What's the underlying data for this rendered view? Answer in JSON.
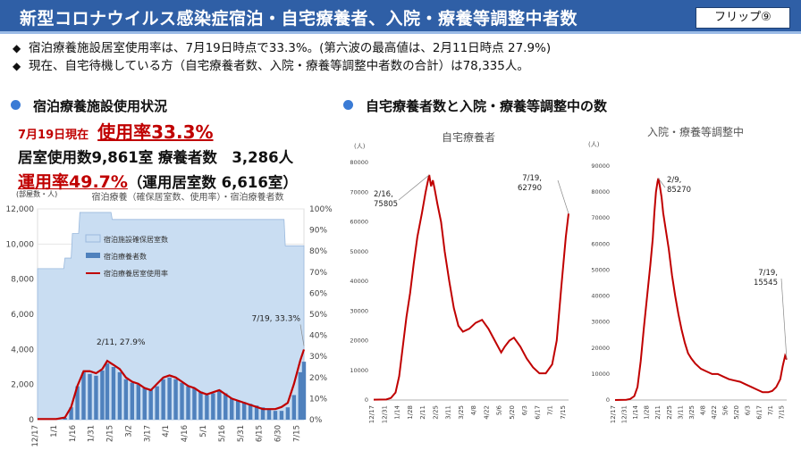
{
  "header": {
    "title": "新型コロナウイルス感染症宿泊・自宅療養者、入院・療養等調整中者数",
    "badge": "フリップ⑨"
  },
  "bullets": [
    {
      "mark": "◆",
      "text": "宿泊療養施設居室使用率は、7月19日時点で33.3%。(第六波の最高値は、2月11日時点 27.9%)"
    },
    {
      "mark": "◆",
      "text": "現在、自宅待機している方（自宅療養者数、入院・療養等調整中者数の合計）は78,335人。"
    }
  ],
  "left_section": {
    "heading": "宿泊療養施設使用状況",
    "date_label": "7月19日現在",
    "usage_rate": "使用率33.3%",
    "line2": "居室使用数9,861室 療養者数　3,286人",
    "operating_rate": "運用率49.7%",
    "operating_rooms": "（運用居室数 6,616室）"
  },
  "right_section": {
    "heading": "自宅療養者数と入院・療養等調整中の数"
  },
  "colors": {
    "header_bg": "#2f5fa6",
    "accent_red": "#c00000",
    "area_fill": "#c9ddf2",
    "bar_blue": "#4f81bd",
    "dot_blue": "#3a7bd5"
  },
  "chart_data": [
    {
      "type": "bar",
      "title": "宿泊療養（確保居室数、使用率）・宿泊療養者数",
      "ylabel_left": "(部屋数・人)",
      "ylim_left": [
        0,
        12000
      ],
      "yticks_left": [
        "0",
        "2,000",
        "4,000",
        "6,000",
        "8,000",
        "10,000",
        "12,000"
      ],
      "ylim_right": [
        0,
        100
      ],
      "yticks_right": [
        "0%",
        "10%",
        "20%",
        "30%",
        "40%",
        "50%",
        "60%",
        "70%",
        "80%",
        "90%",
        "100%"
      ],
      "x_ticks": [
        "12/17",
        "1/1",
        "1/16",
        "1/31",
        "2/15",
        "3/2",
        "3/17",
        "4/1",
        "4/16",
        "5/1",
        "5/16",
        "5/31",
        "6/15",
        "6/30",
        "7/15"
      ],
      "legend": [
        "宿泊施設確保居室数",
        "宿泊療養者数",
        "宿泊療養居室使用率"
      ],
      "series": [
        {
          "name": "宿泊施設確保居室数",
          "kind": "area",
          "x": [
            "12/17",
            "12/31",
            "1/1",
            "1/7",
            "1/8",
            "1/13",
            "1/14",
            "1/19",
            "1/20",
            "2/14",
            "2/15",
            "7/3",
            "7/4",
            "7/19"
          ],
          "values": [
            8600,
            8600,
            8600,
            8600,
            9200,
            9200,
            10600,
            10600,
            11800,
            11800,
            11400,
            11400,
            9900,
            9900
          ]
        },
        {
          "name": "宿泊療養者数",
          "kind": "bar",
          "x": [
            "1/8",
            "1/13",
            "1/18",
            "1/23",
            "1/28",
            "2/2",
            "2/7",
            "2/11",
            "2/16",
            "2/21",
            "2/26",
            "3/3",
            "3/8",
            "3/13",
            "3/18",
            "3/23",
            "3/28",
            "4/2",
            "4/7",
            "4/12",
            "4/17",
            "4/22",
            "4/27",
            "5/2",
            "5/7",
            "5/12",
            "5/17",
            "5/22",
            "5/27",
            "6/1",
            "6/6",
            "6/11",
            "6/16",
            "6/21",
            "6/26",
            "7/1",
            "7/6",
            "7/11",
            "7/16",
            "7/19"
          ],
          "values": [
            100,
            700,
            1900,
            2700,
            2600,
            2500,
            2800,
            3200,
            3000,
            2700,
            2300,
            2100,
            2000,
            1800,
            1700,
            1900,
            2300,
            2400,
            2300,
            2100,
            1900,
            1800,
            1600,
            1400,
            1500,
            1700,
            1500,
            1200,
            1100,
            1000,
            900,
            800,
            700,
            600,
            500,
            500,
            700,
            1400,
            2700,
            3300
          ]
        },
        {
          "name": "宿泊療養居室使用率",
          "kind": "line",
          "x": [
            "12/17",
            "1/1",
            "1/8",
            "1/13",
            "1/18",
            "1/23",
            "1/28",
            "2/2",
            "2/7",
            "2/11",
            "2/16",
            "2/21",
            "2/26",
            "3/3",
            "3/8",
            "3/13",
            "3/18",
            "3/23",
            "3/28",
            "4/2",
            "4/7",
            "4/12",
            "4/17",
            "4/22",
            "4/27",
            "5/2",
            "5/7",
            "5/12",
            "5/17",
            "5/22",
            "5/27",
            "6/1",
            "6/6",
            "6/11",
            "6/16",
            "6/21",
            "6/26",
            "7/1",
            "7/6",
            "7/11",
            "7/16",
            "7/19"
          ],
          "values": [
            0.3,
            0.3,
            1,
            6,
            16,
            23,
            23,
            22,
            24,
            27.9,
            26,
            24,
            20,
            18,
            17,
            15,
            14,
            17,
            20,
            21,
            20,
            18,
            16,
            15,
            13,
            12,
            13,
            14,
            12,
            10,
            9,
            8,
            7,
            6,
            5,
            5,
            5,
            6,
            8,
            17,
            28,
            33.3
          ]
        }
      ],
      "annotations": [
        {
          "x": "2/11",
          "text": "2/11, 27.9%"
        },
        {
          "x": "7/19",
          "text": "7/19, 33.3%"
        }
      ]
    },
    {
      "type": "line",
      "title": "自宅療養者",
      "ylabel": "(人)",
      "ylim": [
        0,
        80000
      ],
      "yticks": [
        "0",
        "10000",
        "20000",
        "30000",
        "40000",
        "50000",
        "60000",
        "70000",
        "80000"
      ],
      "x_ticks": [
        "12/17",
        "12/31",
        "1/14",
        "1/28",
        "2/11",
        "2/25",
        "3/11",
        "3/25",
        "4/8",
        "4/22",
        "5/6",
        "5/20",
        "6/3",
        "6/17",
        "7/1",
        "7/15"
      ],
      "series": [
        {
          "name": "自宅療養者",
          "x": [
            "12/17",
            "12/31",
            "1/5",
            "1/10",
            "1/14",
            "1/18",
            "1/22",
            "1/26",
            "1/30",
            "2/3",
            "2/8",
            "2/12",
            "2/14",
            "2/16",
            "2/18",
            "2/20",
            "2/22",
            "2/25",
            "3/1",
            "3/5",
            "3/10",
            "3/15",
            "3/20",
            "3/25",
            "4/1",
            "4/8",
            "4/15",
            "4/22",
            "4/29",
            "5/6",
            "5/10",
            "5/15",
            "5/20",
            "5/27",
            "6/3",
            "6/10",
            "6/17",
            "6/24",
            "7/1",
            "7/6",
            "7/11",
            "7/16",
            "7/19"
          ],
          "values": [
            100,
            200,
            700,
            2500,
            8000,
            18000,
            28000,
            36000,
            46000,
            55000,
            63000,
            70000,
            73000,
            75805,
            72000,
            74000,
            71000,
            66000,
            60000,
            50000,
            40000,
            31000,
            25000,
            23000,
            24000,
            26000,
            27000,
            24000,
            20000,
            16000,
            18000,
            20000,
            21000,
            18000,
            14000,
            11000,
            9000,
            9000,
            12000,
            20000,
            38000,
            55000,
            62790
          ]
        }
      ],
      "annotations": [
        {
          "x": "2/16",
          "text": "2/16,\n75805"
        },
        {
          "x": "7/19",
          "text": "7/19,\n62790"
        }
      ]
    },
    {
      "type": "line",
      "title": "入院・療養等調整中",
      "ylabel": "(人)",
      "ylim": [
        0,
        90000
      ],
      "yticks": [
        "0",
        "10000",
        "20000",
        "30000",
        "40000",
        "50000",
        "60000",
        "70000",
        "80000",
        "90000"
      ],
      "x_ticks": [
        "12/17",
        "12/31",
        "1/14",
        "1/28",
        "2/11",
        "2/25",
        "3/11",
        "3/25",
        "4/8",
        "4/22",
        "5/6",
        "5/20",
        "6/3",
        "6/17",
        "7/1",
        "7/15"
      ],
      "series": [
        {
          "name": "入院・療養等調整中",
          "x": [
            "12/17",
            "12/31",
            "1/5",
            "1/10",
            "1/14",
            "1/18",
            "1/22",
            "1/26",
            "1/30",
            "2/2",
            "2/4",
            "2/6",
            "2/8",
            "2/9",
            "2/11",
            "2/13",
            "2/15",
            "2/18",
            "2/22",
            "2/26",
            "3/2",
            "3/6",
            "3/10",
            "3/14",
            "3/18",
            "3/22",
            "3/27",
            "4/3",
            "4/10",
            "4/17",
            "4/24",
            "5/1",
            "5/8",
            "5/15",
            "5/22",
            "5/29",
            "6/5",
            "6/12",
            "6/19",
            "6/26",
            "7/1",
            "7/6",
            "7/11",
            "7/14",
            "7/17",
            "7/19"
          ],
          "values": [
            0,
            100,
            400,
            1500,
            5000,
            15000,
            28000,
            40000,
            52000,
            62000,
            72000,
            80000,
            84000,
            85270,
            82000,
            78000,
            72000,
            66000,
            58000,
            48000,
            40000,
            33000,
            27000,
            22000,
            18000,
            16000,
            14000,
            12000,
            11000,
            10000,
            10000,
            9000,
            8000,
            7500,
            7000,
            6000,
            5000,
            4000,
            3000,
            3000,
            3500,
            5000,
            8000,
            13000,
            17000,
            15545
          ]
        }
      ],
      "annotations": [
        {
          "x": "2/9",
          "text": "2/9,\n85270"
        },
        {
          "x": "7/19",
          "text": "7/19,\n15545"
        }
      ]
    }
  ]
}
